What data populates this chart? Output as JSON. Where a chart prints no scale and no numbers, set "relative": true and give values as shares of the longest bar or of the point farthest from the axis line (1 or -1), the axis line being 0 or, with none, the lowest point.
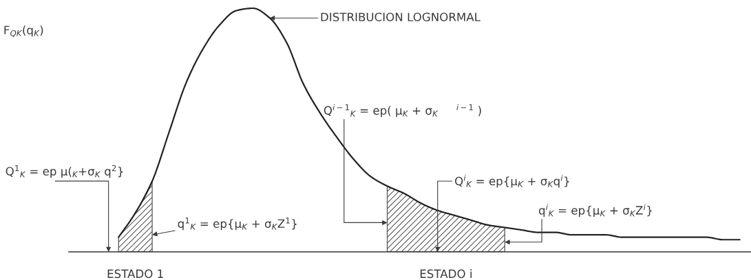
{
  "chart_data": {
    "type": "line",
    "relative": true,
    "categories": [
      null,
      null,
      null,
      null,
      null,
      null,
      null,
      null,
      null,
      null,
      null,
      null,
      null,
      null,
      null,
      null,
      null,
      null,
      null,
      null,
      null,
      null,
      null,
      null,
      null,
      null,
      null,
      null,
      null,
      null,
      null,
      null,
      null,
      null,
      null,
      null,
      null,
      null
    ],
    "series": [
      {
        "color": "#222222",
        "values": [
          0.06,
          0.16,
          0.29,
          0.49,
          0.69,
          0.83,
          0.93,
          0.99,
          1.0,
          0.96,
          0.86,
          0.69,
          0.57,
          0.47,
          0.38,
          0.31,
          0.27,
          0.24,
          0.2,
          0.17,
          0.15,
          0.13,
          0.11,
          0.1,
          0.09,
          0.08,
          0.08,
          0.07,
          0.07,
          0.07,
          0.06,
          0.06,
          0.06,
          0.06,
          0.06,
          0.06,
          0.05,
          0.05
        ]
      },
      {
        "type": "area",
        "name": "ESTADO 1",
        "color": "#555555",
        "values": [
          0.06,
          0.16,
          0.29,
          null,
          null,
          null,
          null,
          null,
          null,
          null,
          null,
          null,
          null,
          null,
          null,
          null,
          null,
          null,
          null,
          null,
          null,
          null,
          null,
          null,
          null,
          null,
          null,
          null,
          null,
          null,
          null,
          null,
          null,
          null,
          null,
          null,
          null,
          null
        ]
      },
      {
        "type": "area",
        "name": "ESTADO i",
        "color": "#555555",
        "values": [
          null,
          null,
          null,
          null,
          null,
          null,
          null,
          null,
          null,
          null,
          null,
          null,
          null,
          null,
          null,
          null,
          0.27,
          0.24,
          0.2,
          0.17,
          0.15,
          0.13,
          0.11,
          0.1,
          null,
          null,
          null,
          null,
          null,
          null,
          null,
          null,
          null,
          null,
          null,
          null,
          null,
          null
        ]
      }
    ],
    "annotations": [
      "F$_{QK}$(q$_{K}$)",
      "DISTRIBUCION LOGNORMAL",
      "Q$^{1}$$_{K}$ = ep μ($_{K}$+σ$_{K}$ q$^{2}$}",
      "q$^{1}$$_{K}$ = ep{μ$_{K}$ + σ$_{K}$Z$^{1}$}",
      "Q$^{i−1}$$_{K}$ = ep( μ$_{K}$ + σ$_{K}$     $^{i−1}$ )",
      "Q$^{i}$$_{K}$ = ep{μ$_{K}$ + σ$_{K}$q$^{i}$}",
      "q$^{i}$$_{K}$ = ep{μ$_{K}$ + σ$_{K}$Z$^{i}$}"
    ]
  }
}
